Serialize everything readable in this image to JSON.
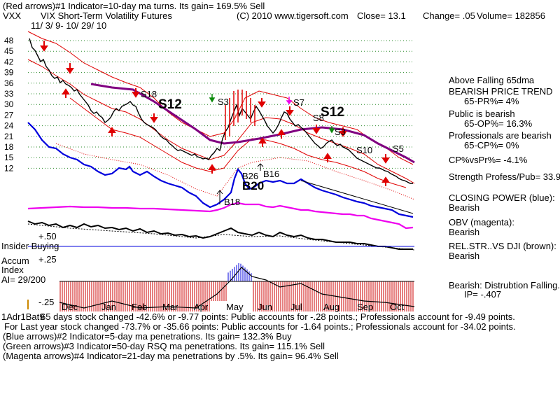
{
  "header": {
    "line1": "(Red arrows)#1 Indicator=10-day ma turns. Its gain= 169.5% Sell",
    "ticker": "VXX",
    "name": "VIX Short-Term Volatility Futures",
    "copyright": "(C) 2010 www.tigersoft.com",
    "close": "Close=  13.1",
    "change": "Change= .05",
    "volume": "Volume= 182856",
    "dates": "11/ 3/ 9- 10/ 29/ 10"
  },
  "chart_data": {
    "type": "line",
    "title": "VIX Short-Term Volatility Futures",
    "y_ticks": [
      "48",
      "45",
      "42",
      "39",
      "36",
      "33",
      "30",
      "27",
      "24",
      "21",
      "18",
      "15",
      "12"
    ],
    "x_ticks": [
      "Dec",
      "Jan",
      "Feb",
      "Mar",
      "Apr",
      "May",
      "Jun",
      "Jul",
      "Aug",
      "Sep",
      "Oct"
    ],
    "ylim": [
      10,
      50
    ],
    "series": [
      {
        "name": "VXX",
        "x": [
          0,
          0.3,
          0.6,
          1,
          1.3,
          1.6,
          2,
          2.3,
          2.6,
          3,
          3.3,
          3.6,
          4,
          4.3,
          4.6,
          5,
          5.3,
          5.6,
          6,
          6.3,
          6.6,
          7,
          7.3,
          7.6,
          8,
          8.3,
          8.6,
          9,
          9.3,
          9.6,
          10,
          10.3,
          10.6,
          11
        ],
        "values": [
          48,
          44,
          39,
          36,
          34,
          33,
          32,
          29,
          27,
          25,
          23,
          21,
          20,
          22,
          28,
          36,
          33,
          31,
          30,
          27,
          28,
          26,
          25,
          23,
          24,
          22,
          20,
          18,
          17,
          16,
          15,
          14,
          13,
          13.1
        ]
      }
    ],
    "signals": [
      {
        "label": "S18",
        "size": "small"
      },
      {
        "label": "S12",
        "size": "large"
      },
      {
        "label": "S3",
        "size": "small"
      },
      {
        "label": "S7",
        "size": "small"
      },
      {
        "label": "S8",
        "size": "small"
      },
      {
        "label": "S12",
        "size": "large"
      },
      {
        "label": "S3",
        "size": "small"
      },
      {
        "label": "S10",
        "size": "small"
      },
      {
        "label": "S5",
        "size": "small"
      },
      {
        "label": "B18",
        "size": "small"
      },
      {
        "label": "B26",
        "size": "small"
      },
      {
        "label": "B20",
        "size": "large"
      },
      {
        "label": "B16",
        "size": "small"
      }
    ]
  },
  "lower": {
    "insider": "Insider Buying",
    "plus50": "+.50",
    "plus25": "+.25",
    "accum1": "Accum",
    "accum2": "Index",
    "ai": "AI= 29/200",
    "minus25": "-.25",
    "overlap": "1Adr1Bat9",
    "accum_values": [
      -0.1,
      -0.12,
      -0.08,
      -0.15,
      -0.12,
      -0.1,
      -0.05,
      0.05,
      0.25,
      0.2,
      0.1,
      0.05,
      -0.05,
      -0.1,
      -0.12,
      -0.15,
      -0.18,
      -0.2,
      -0.22,
      -0.18
    ]
  },
  "right": {
    "r1": "Above Falling 65dma",
    "r2": "BEARISH PRICE TREND",
    "r3": "65-PR%= 4%",
    "r4": "Public is bearish",
    "r5": "65-OP%= 16.3%",
    "r6": "Professionals are bearish",
    "r7": "65-CP%= 0%",
    "r8": "CP%vsPr%= -4.1%",
    "r9": "Strength Profess/Pub= 33.9",
    "r10": "CLOSING POWER (blue):",
    "r11": "Bearish",
    "r12": "OBV (magenta):",
    "r13": "Bearish",
    "r14": "REL.STR..VS DJI (brown):",
    "r15": "Bearish",
    "r16": "Bearish:  Distrubtion Falling.",
    "r17": "IP= -.407"
  },
  "footer": {
    "f1": "65 days stock changed -42.6% or -9.77 points:  Public accounts for -.28 points.;  Professionals account for -9.49 points.",
    "f2": "For Last year stock changed -73.7% or -35.66 points:  Public accounts for -1.64 points.;  Professionals account for -34.02 points.",
    "f3": "(Blue arrows)#2 Indicator=5-day ma penetrations. Its gain= 132.3% Buy",
    "f4": "(Green arrows)#3 Indicator=50-day RSQ ma penetrations. Its gain= 115.1% Sell",
    "f5": "(Magenta arrows)#4 Indicator=21-day ma penetrations by .5%. Its gain= 96.4% Sell"
  },
  "colors": {
    "price": "#000000",
    "band": "#e00000",
    "ma65": "#800080",
    "closing_power": "#0000dd",
    "obv": "#ee00ee",
    "rel_str": "#000000",
    "accum_bar": "#cc0000",
    "grid": "#2a8a2a"
  }
}
